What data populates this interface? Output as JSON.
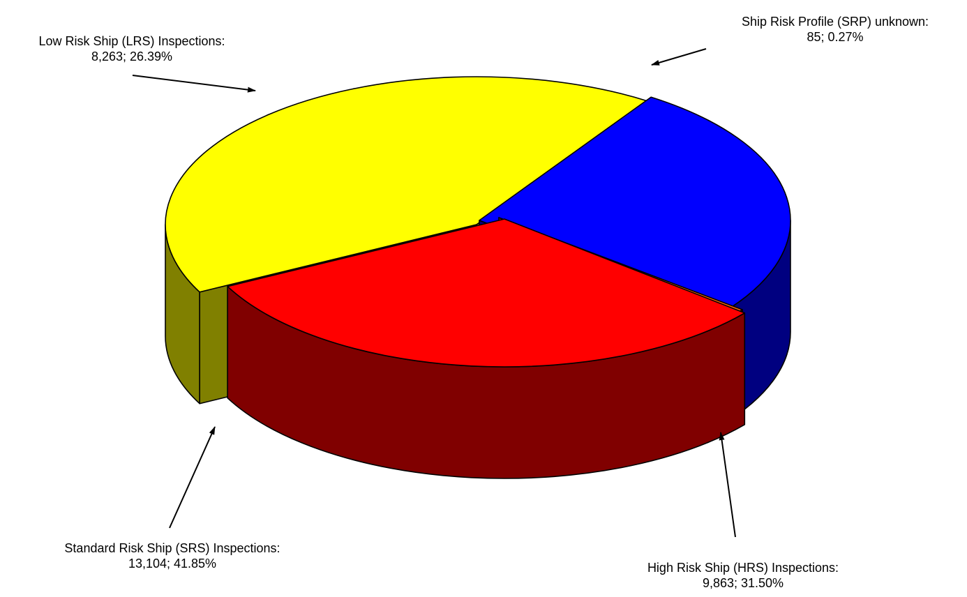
{
  "chart_data": {
    "type": "pie",
    "style": "3d-exploded",
    "slices": [
      {
        "id": "lrs",
        "label_line1": "Low Risk Ship (LRS) Inspections:",
        "label_line2": "8,263; 26.39%",
        "value": 8263,
        "percent": 26.39,
        "color_top": "#0000FF",
        "color_side": "#000080"
      },
      {
        "id": "srp",
        "label_line1": "Ship Risk Profile (SRP) unknown:",
        "label_line2": "85; 0.27%",
        "value": 85,
        "percent": 0.27,
        "color_top": "#FF6600",
        "color_side": "#993300"
      },
      {
        "id": "hrs",
        "label_line1": "High Risk Ship (HRS) Inspections:",
        "label_line2": "9,863; 31.50%",
        "value": 9863,
        "percent": 31.5,
        "color_top": "#FF0000",
        "color_side": "#800000"
      },
      {
        "id": "srs",
        "label_line1": "Standard Risk Ship (SRS) Inspections:",
        "label_line2": "13,104; 41.85%",
        "value": 13104,
        "percent": 41.85,
        "color_top": "#FFFF00",
        "color_side": "#808000"
      }
    ],
    "legend": "none"
  }
}
